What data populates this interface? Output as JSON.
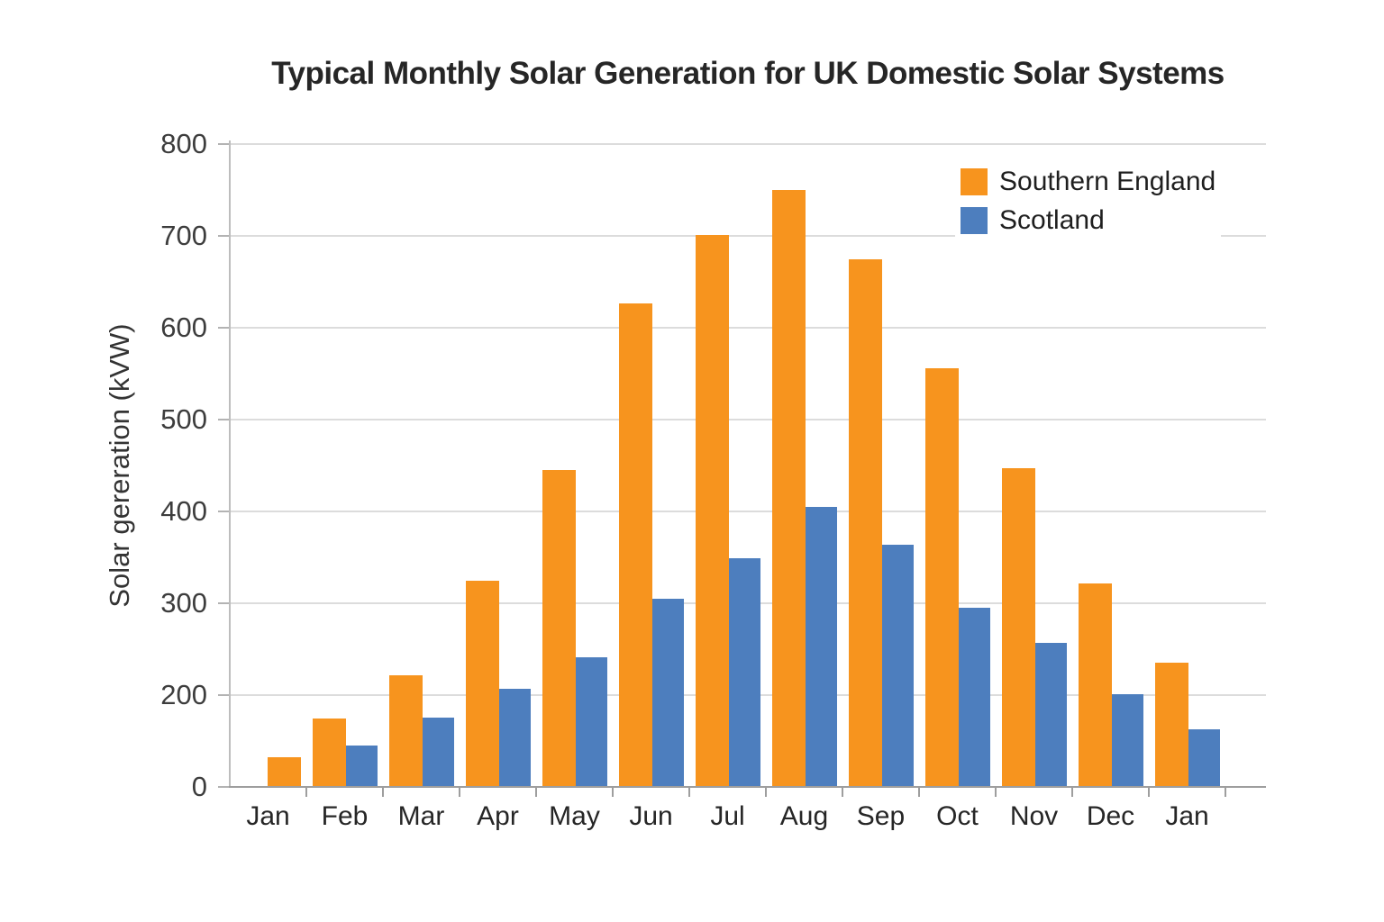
{
  "chart_data": {
    "type": "bar",
    "title": "Typical Monthly Solar Generation for UK Domestic Solar Systems",
    "xlabel": "",
    "ylabel": "Solar gereration (kVW)",
    "categories": [
      "Jan",
      "Feb",
      "Mar",
      "Apr",
      "May",
      "Jun",
      "Jul",
      "Aug",
      "Sep",
      "Oct",
      "Nov",
      "Dec",
      "Jan"
    ],
    "series": [
      {
        "name": "Southern England",
        "color": "#F7941E",
        "values": [
          64,
          150,
          222,
          325,
          445,
          627,
          701,
          750,
          675,
          556,
          447,
          322,
          235
        ]
      },
      {
        "name": "Scotland",
        "color": "#4D7EBE",
        "values": [
          null,
          90,
          152,
          207,
          241,
          305,
          349,
          405,
          364,
          295,
          257,
          201,
          125
        ]
      }
    ],
    "y_ticks": [
      0,
      200,
      300,
      400,
      500,
      600,
      700,
      800
    ],
    "ylim": [
      0,
      800
    ],
    "grid": true,
    "legend_position": "top-right",
    "axis_note": "y tick intervals are rendered evenly spaced, including the 0-200 interval"
  },
  "colors": {
    "background": "#ffffff",
    "gridline": "#dcdcdc",
    "axis": "#9e9e9e",
    "tick_text": "#3d3d3d",
    "label_text": "#262626",
    "title_text": "#262626"
  }
}
